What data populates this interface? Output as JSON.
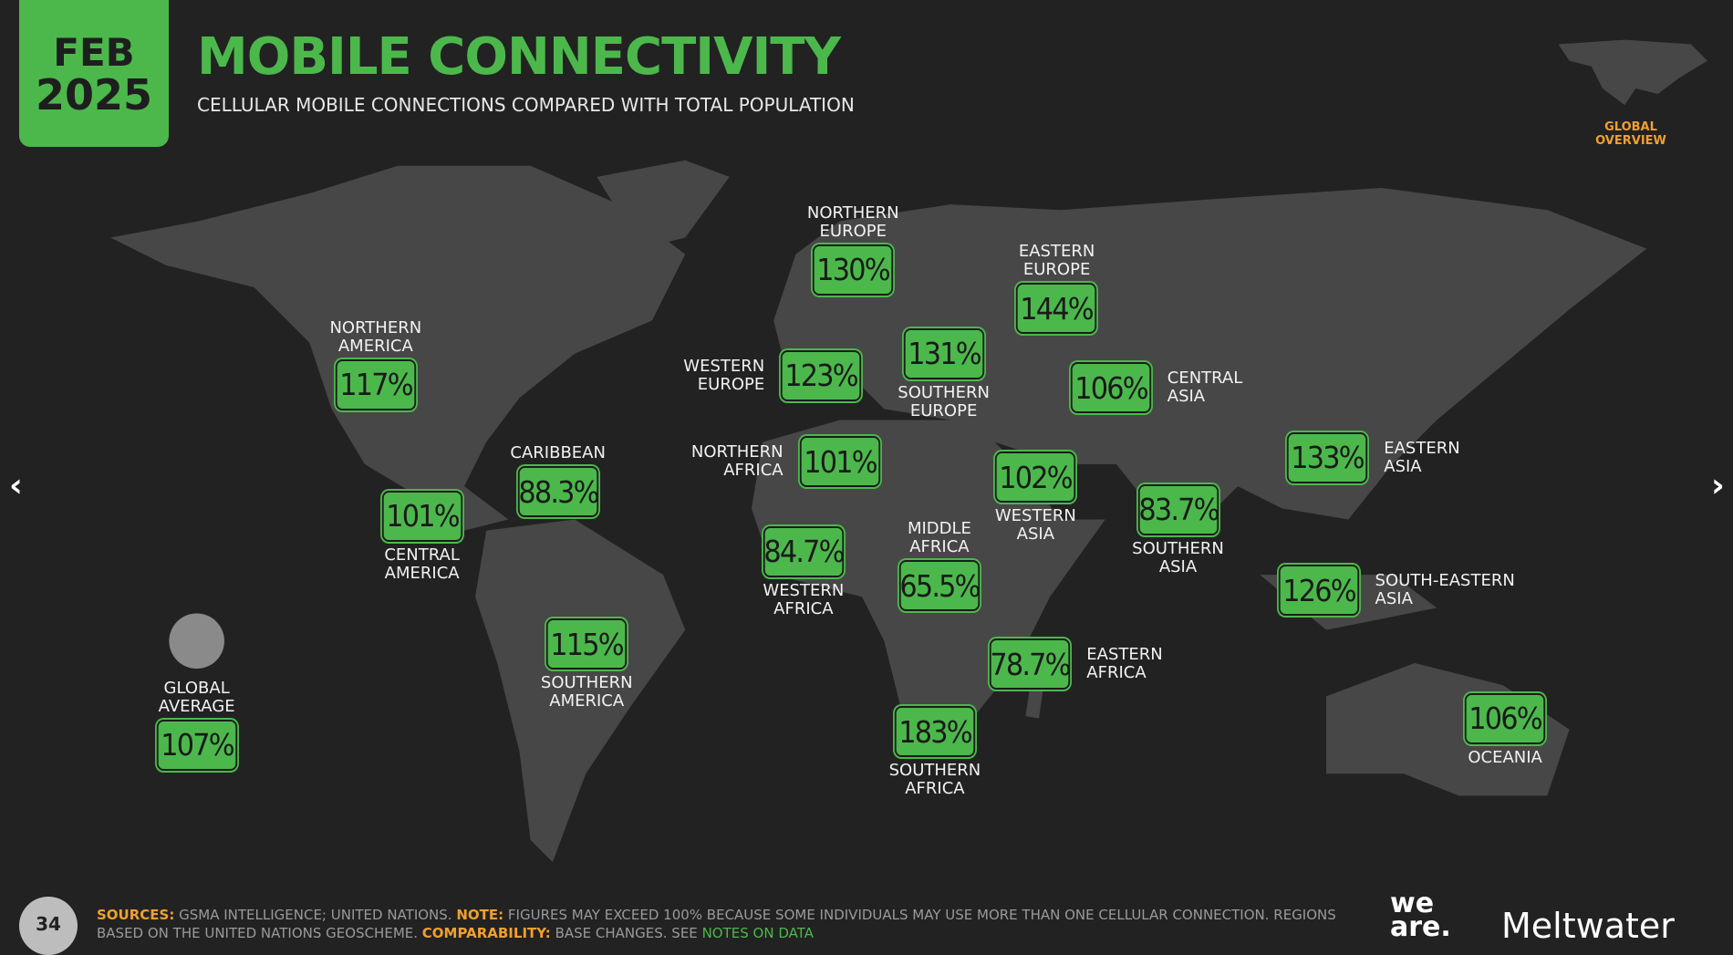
{
  "header": {
    "month": "FEB",
    "year": "2025",
    "title": "MOBILE CONNECTIVITY",
    "subtitle": "CELLULAR MOBILE CONNECTIONS COMPARED WITH TOTAL POPULATION",
    "section": "GLOBAL OVERVIEW"
  },
  "regions": [
    {
      "name": [
        "NORTHERN",
        "AMERICA"
      ],
      "value": "117%"
    },
    {
      "name": [
        "CENTRAL",
        "AMERICA"
      ],
      "value": "101%"
    },
    {
      "name": [
        "CARIBBEAN"
      ],
      "value": "88.3%"
    },
    {
      "name": [
        "SOUTHERN",
        "AMERICA"
      ],
      "value": "115%"
    },
    {
      "name": [
        "NORTHERN",
        "EUROPE"
      ],
      "value": "130%"
    },
    {
      "name": [
        "WESTERN",
        "EUROPE"
      ],
      "value": "123%"
    },
    {
      "name": [
        "SOUTHERN",
        "EUROPE"
      ],
      "value": "131%"
    },
    {
      "name": [
        "EASTERN",
        "EUROPE"
      ],
      "value": "144%"
    },
    {
      "name": [
        "CENTRAL",
        "ASIA"
      ],
      "value": "106%"
    },
    {
      "name": [
        "NORTHERN",
        "AFRICA"
      ],
      "value": "101%"
    },
    {
      "name": [
        "WESTERN",
        "AFRICA"
      ],
      "value": "84.7%"
    },
    {
      "name": [
        "MIDDLE",
        "AFRICA"
      ],
      "value": "65.5%"
    },
    {
      "name": [
        "WESTERN",
        "ASIA"
      ],
      "value": "102%"
    },
    {
      "name": [
        "SOUTHERN",
        "ASIA"
      ],
      "value": "83.7%"
    },
    {
      "name": [
        "EASTERN",
        "ASIA"
      ],
      "value": "133%"
    },
    {
      "name": [
        "SOUTH-EASTERN",
        "ASIA"
      ],
      "value": "126%"
    },
    {
      "name": [
        "EASTERN",
        "AFRICA"
      ],
      "value": "78.7%"
    },
    {
      "name": [
        "SOUTHERN",
        "AFRICA"
      ],
      "value": "183%"
    },
    {
      "name": [
        "OCEANIA"
      ],
      "value": "106%"
    }
  ],
  "global_average": {
    "name": [
      "GLOBAL",
      "AVERAGE"
    ],
    "value": "107%"
  },
  "footer": {
    "page": "34",
    "sources_label": "SOURCES:",
    "sources": "GSMA INTELLIGENCE; UNITED NATIONS.",
    "note_label": "NOTE:",
    "note": "FIGURES MAY EXCEED 100% BECAUSE SOME INDIVIDUALS MAY USE MORE THAN ONE CELLULAR CONNECTION. REGIONS BASED ON THE UNITED NATIONS GEOSCHEME.",
    "comparability_label": "COMPARABILITY:",
    "comparability": "BASE CHANGES. SEE",
    "notes_link": "NOTES ON DATA",
    "logo_1": "we are.",
    "logo_2": "Meltwater"
  }
}
